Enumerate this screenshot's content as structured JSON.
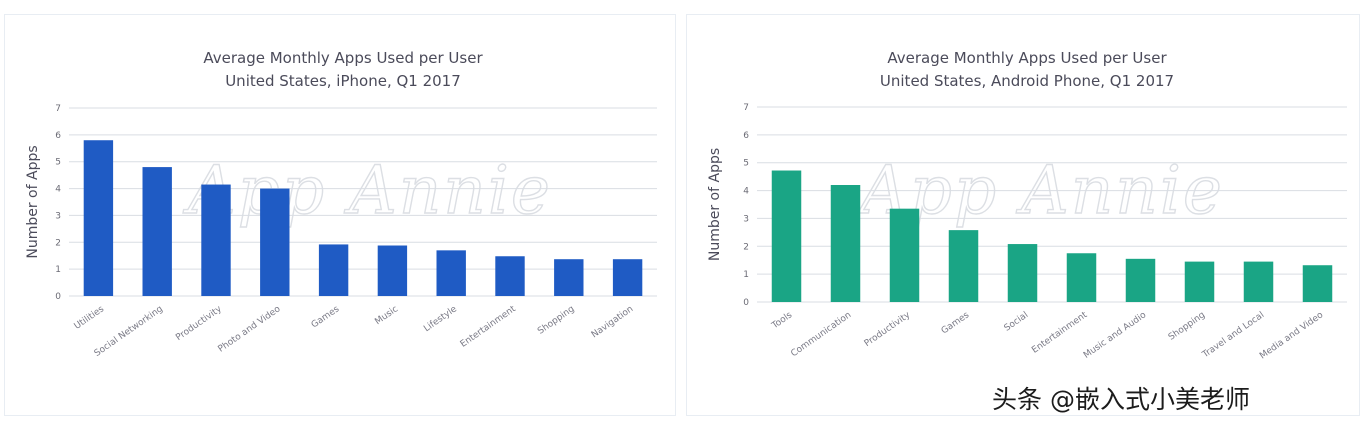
{
  "chart_data": [
    {
      "type": "bar",
      "title": "Average Monthly Apps Used per User",
      "subtitle": "United States, iPhone, Q1 2017",
      "ylabel": "Number of Apps",
      "xlabel": "",
      "ylim": [
        0,
        7
      ],
      "yticks": [
        "0",
        "1",
        "2",
        "3",
        "4",
        "5",
        "6",
        "7"
      ],
      "grid": true,
      "bar_color": "#1f5bc4",
      "watermark": "App Annie",
      "categories": [
        "Utilities",
        "Social Networking",
        "Productivity",
        "Photo and Video",
        "Games",
        "Music",
        "Lifestyle",
        "Entertainment",
        "Shopping",
        "Navigation"
      ],
      "values": [
        5.8,
        4.8,
        4.15,
        4.0,
        1.92,
        1.88,
        1.7,
        1.48,
        1.37,
        1.37
      ]
    },
    {
      "type": "bar",
      "title": "Average Monthly Apps Used per User",
      "subtitle": "United States, Android Phone, Q1 2017",
      "ylabel": "Number of Apps",
      "xlabel": "",
      "ylim": [
        0,
        7
      ],
      "yticks": [
        "0",
        "1",
        "2",
        "3",
        "4",
        "5",
        "6",
        "7"
      ],
      "grid": true,
      "bar_color": "#1aa585",
      "watermark": "App Annie",
      "categories": [
        "Tools",
        "Communication",
        "Productivity",
        "Games",
        "Social",
        "Entertainment",
        "Music and Audio",
        "Shopping",
        "Travel and Local",
        "Media and Video"
      ],
      "values": [
        4.72,
        4.2,
        3.35,
        2.58,
        2.08,
        1.75,
        1.55,
        1.45,
        1.45,
        1.32
      ]
    }
  ],
  "credit": "头条 @嵌入式小美老师"
}
